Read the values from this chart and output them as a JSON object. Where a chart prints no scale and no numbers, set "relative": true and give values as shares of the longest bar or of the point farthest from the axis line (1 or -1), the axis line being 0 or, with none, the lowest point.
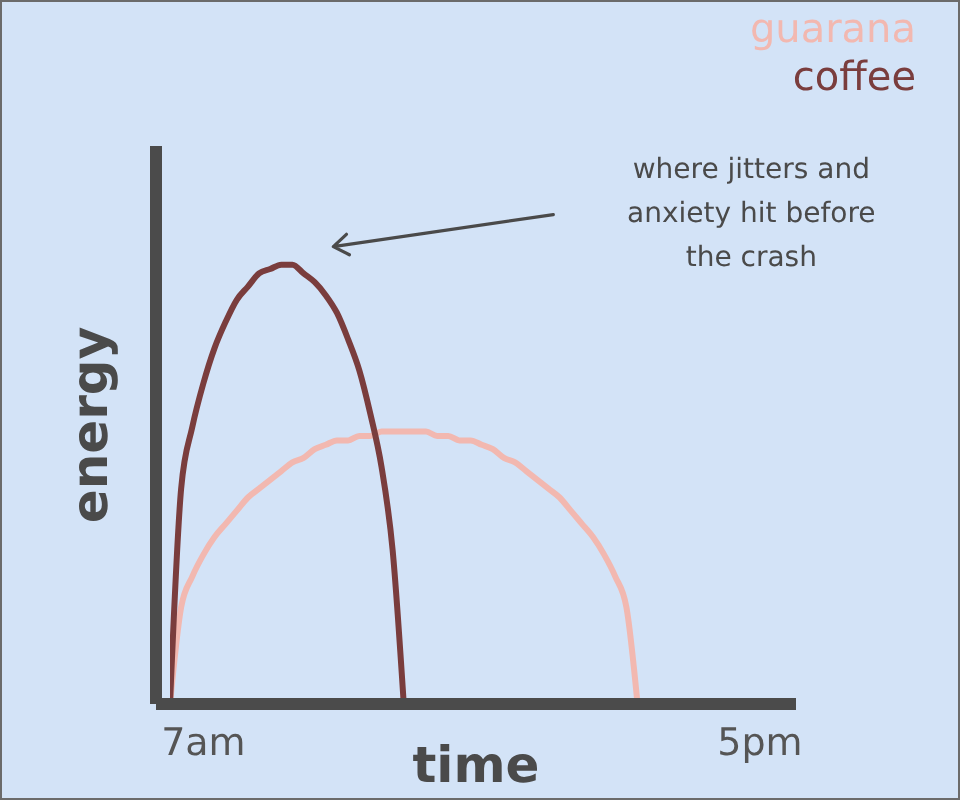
{
  "chart_data": {
    "type": "line",
    "xlabel": "time",
    "ylabel": "energy",
    "relative": true,
    "legend": "top right",
    "marker": "none",
    "categories": [
      null,
      null,
      null,
      "7am",
      null,
      null,
      null,
      null,
      null,
      null,
      null,
      null,
      null,
      null,
      null,
      null,
      null,
      null,
      null,
      null,
      null,
      null,
      null,
      null,
      null,
      null,
      null,
      null,
      null,
      null,
      null,
      null,
      null,
      null,
      null,
      null,
      null,
      null,
      null,
      null,
      null,
      null,
      null,
      null,
      null,
      null,
      null,
      null,
      null,
      null,
      null,
      null,
      null,
      "5pm"
    ],
    "series": [
      {
        "name": "guarana",
        "color": "#f2b8b0",
        "values": [
          0,
          0.22,
          0.29,
          0.34,
          0.38,
          0.41,
          0.44,
          0.47,
          0.49,
          0.51,
          0.53,
          0.55,
          0.56,
          0.58,
          0.59,
          0.6,
          0.6,
          0.61,
          0.61,
          0.62,
          0.62,
          0.62,
          0.62,
          0.62,
          0.61,
          0.61,
          0.6,
          0.6,
          0.59,
          0.58,
          0.56,
          0.55,
          0.53,
          0.51,
          0.49,
          0.47,
          0.44,
          0.41,
          0.38,
          0.34,
          0.29,
          0.22,
          0,
          null,
          null,
          null,
          null,
          null,
          null,
          null,
          null,
          null,
          null,
          null
        ]
      },
      {
        "name": "coffee",
        "color": "#7a3d3d",
        "values": [
          0,
          0.49,
          0.63,
          0.73,
          0.81,
          0.87,
          0.92,
          0.95,
          0.98,
          0.99,
          1,
          1,
          0.98,
          0.96,
          0.93,
          0.89,
          0.83,
          0.76,
          0.66,
          0.54,
          0.35,
          0,
          null,
          null,
          null,
          null,
          null,
          null,
          null,
          null,
          null,
          null,
          null,
          null,
          null,
          null,
          null,
          null,
          null,
          null,
          null,
          null,
          null,
          null,
          null,
          null,
          null,
          null,
          null,
          null,
          null,
          null,
          null,
          null
        ]
      }
    ],
    "annotations": [
      "where jitters and anxiety hit before the crash"
    ]
  }
}
